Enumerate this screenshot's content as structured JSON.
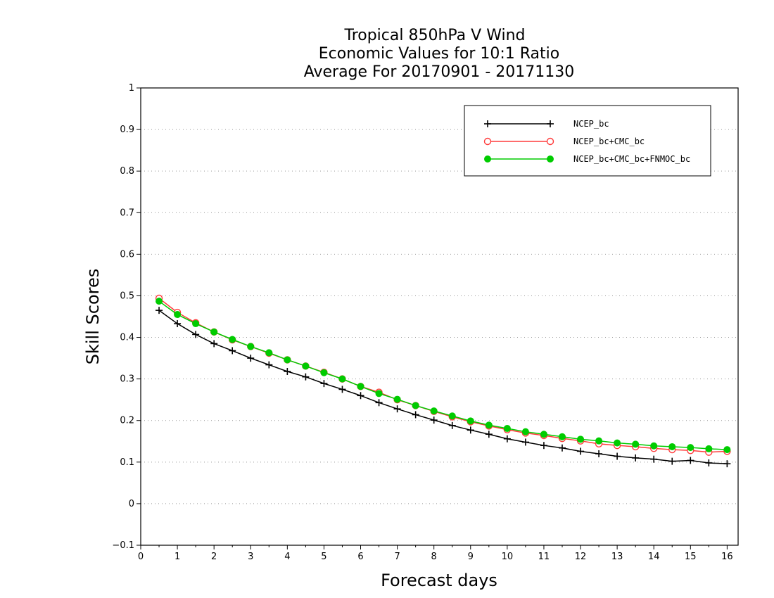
{
  "chart_data": {
    "type": "line",
    "title": [
      "Tropical 850hPa V Wind",
      "Economic Values for 10:1 Ratio",
      "Average For 20170901 - 20171130"
    ],
    "xlabel": "Forecast days",
    "ylabel": "Skill Scores",
    "xlim": [
      0,
      16.3
    ],
    "ylim": [
      -0.1,
      1
    ],
    "x_ticks": [
      0,
      1,
      2,
      3,
      4,
      5,
      6,
      7,
      8,
      9,
      10,
      11,
      12,
      13,
      14,
      15,
      16
    ],
    "x_tick_labels": [
      "0",
      "1",
      "2",
      "3",
      "4",
      "5",
      "6",
      "7",
      "8",
      "9",
      "10",
      "11",
      "12",
      "13",
      "14",
      "15",
      "16"
    ],
    "y_ticks": [
      -0.1,
      0,
      0.1,
      0.2,
      0.3,
      0.4,
      0.5,
      0.6,
      0.7,
      0.8,
      0.9,
      1
    ],
    "y_tick_labels": [
      "−0.1",
      "0",
      "0.1",
      "0.2",
      "0.3",
      "0.4",
      "0.5",
      "0.6",
      "0.7",
      "0.8",
      "0.9",
      "1"
    ],
    "grid": "horizontal dotted",
    "legend_position": "top-right",
    "x": [
      0.5,
      1,
      1.5,
      2,
      2.5,
      3,
      3.5,
      4,
      4.5,
      5,
      5.5,
      6,
      6.5,
      7,
      7.5,
      8,
      8.5,
      9,
      9.5,
      10,
      10.5,
      11,
      11.5,
      12,
      12.5,
      13,
      13.5,
      14,
      14.5,
      15,
      15.5,
      16
    ],
    "series": [
      {
        "name": "NCEP_bc",
        "color": "#000000",
        "marker": "plus",
        "values": [
          0.465,
          0.433,
          0.407,
          0.385,
          0.368,
          0.35,
          0.334,
          0.318,
          0.305,
          0.289,
          0.275,
          0.26,
          0.243,
          0.228,
          0.214,
          0.201,
          0.188,
          0.177,
          0.167,
          0.156,
          0.148,
          0.14,
          0.134,
          0.126,
          0.12,
          0.114,
          0.11,
          0.107,
          0.102,
          0.104,
          0.098,
          0.096
        ]
      },
      {
        "name": "NCEP_bc+CMC_bc",
        "color": "#ff3b3b",
        "marker": "open-circle",
        "values": [
          0.494,
          0.46,
          0.435,
          0.413,
          0.394,
          0.378,
          0.362,
          0.346,
          0.331,
          0.316,
          0.3,
          0.282,
          0.268,
          0.25,
          0.236,
          0.222,
          0.209,
          0.197,
          0.187,
          0.178,
          0.17,
          0.164,
          0.157,
          0.151,
          0.144,
          0.14,
          0.137,
          0.133,
          0.13,
          0.128,
          0.124,
          0.126
        ]
      },
      {
        "name": "NCEP_bc+CMC_bc+FNMOC_bc",
        "color": "#00cc00",
        "marker": "filled-circle",
        "values": [
          0.487,
          0.455,
          0.433,
          0.413,
          0.395,
          0.378,
          0.363,
          0.346,
          0.331,
          0.315,
          0.3,
          0.282,
          0.265,
          0.251,
          0.236,
          0.223,
          0.211,
          0.199,
          0.189,
          0.181,
          0.173,
          0.167,
          0.161,
          0.155,
          0.151,
          0.146,
          0.143,
          0.139,
          0.137,
          0.135,
          0.132,
          0.13
        ]
      }
    ]
  }
}
